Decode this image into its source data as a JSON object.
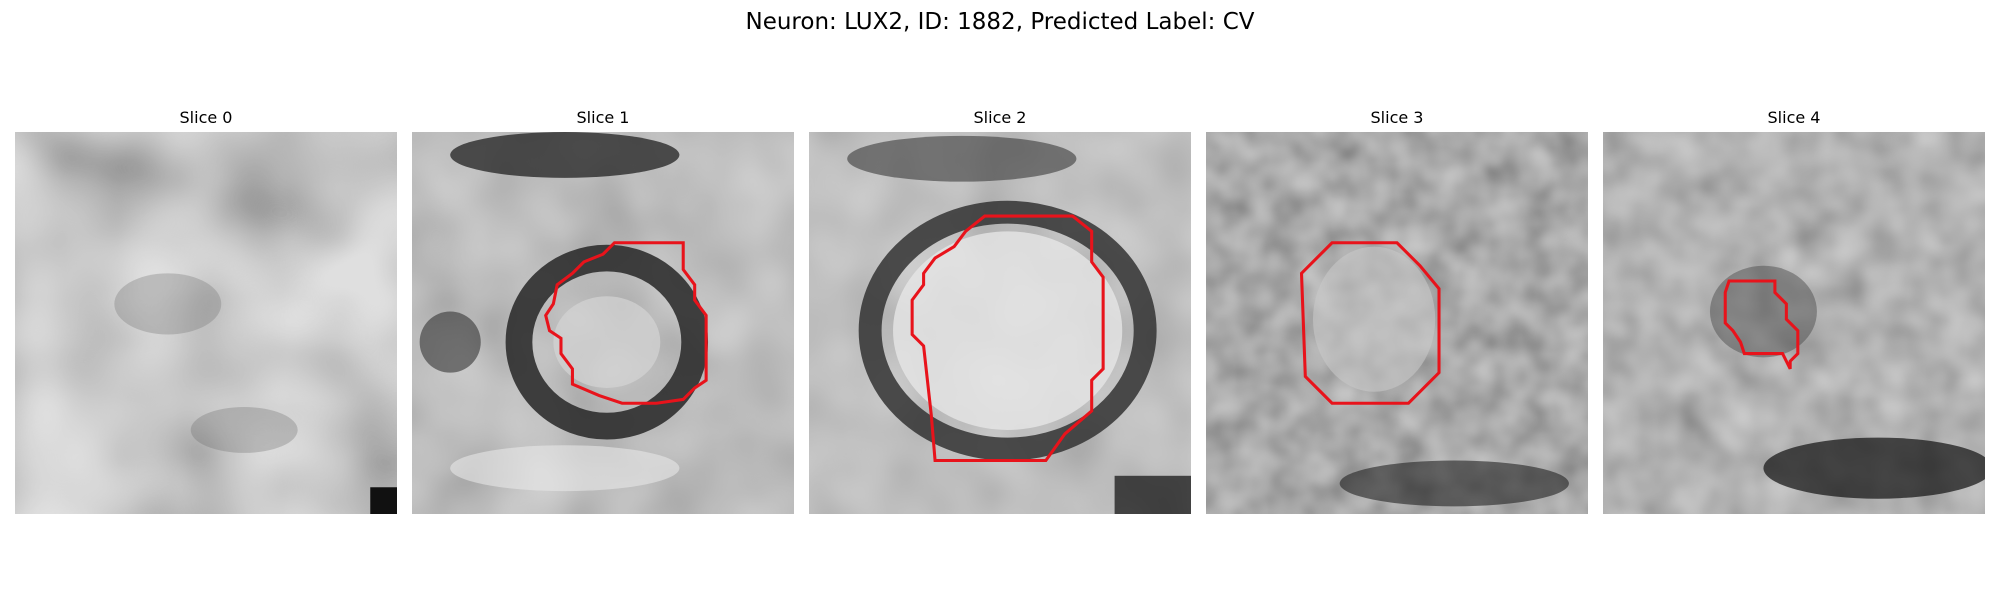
{
  "figure": {
    "title": "Neuron: LUX2, ID: 1882, Predicted Label: CV"
  },
  "panels": [
    {
      "title": "Slice 0",
      "has_contour": false
    },
    {
      "title": "Slice 1",
      "has_contour": true
    },
    {
      "title": "Slice 2",
      "has_contour": true
    },
    {
      "title": "Slice 3",
      "has_contour": true
    },
    {
      "title": "Slice 4",
      "has_contour": true
    }
  ],
  "colors": {
    "contour": "#e8131b",
    "colormap": "grayscale"
  }
}
